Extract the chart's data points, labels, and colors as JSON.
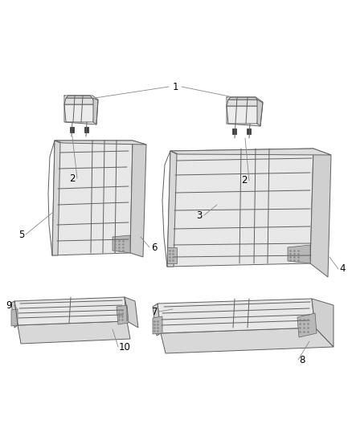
{
  "background_color": "#ffffff",
  "line_color": "#606060",
  "line_width": 0.7,
  "fill_main": "#e8e8e8",
  "fill_side": "#d0d0d0",
  "fill_dark": "#b8b8b8",
  "fill_texture": "#a8a8a8",
  "label_fontsize": 8.5,
  "label_color": "#000000",
  "leader_color": "#888888",
  "leader_lw": 0.6
}
